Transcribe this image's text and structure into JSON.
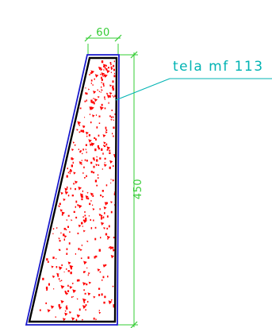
{
  "drawing": {
    "section_label": "tela mf 113",
    "dim_top_width": "60",
    "dim_height": "450"
  },
  "colors": {
    "outline_outer": "#1a1acc",
    "outline_inner": "#000000",
    "dimension": "#33cc33",
    "leader": "#00b3b3",
    "hatch": "#ff0000",
    "background": "#ffffff"
  },
  "hatch_pattern": "concrete-stipple"
}
